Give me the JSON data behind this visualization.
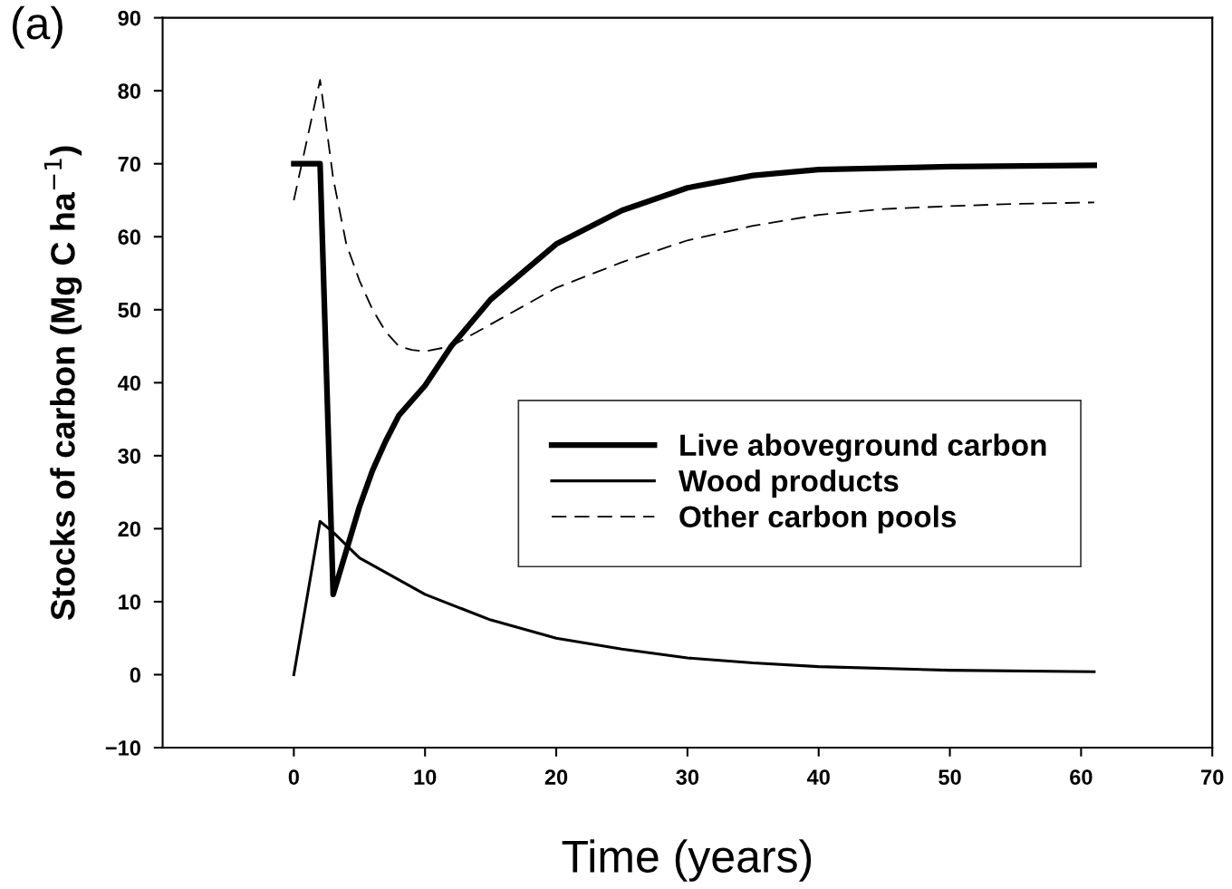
{
  "chart_data": {
    "type": "line",
    "xlabel": "Time (years)",
    "ylabel": "Stocks of carbon (Mg C ha$^{−1}$)",
    "annotations": [
      "(a)"
    ],
    "xlim": [
      -10,
      70
    ],
    "xticks": [
      0,
      10,
      20,
      30,
      40,
      50,
      60,
      70
    ],
    "ylim": [
      -10,
      90
    ],
    "yticks": [
      {
        "value": -10,
        "label": "−10"
      },
      0,
      10,
      20,
      30,
      40,
      50,
      60,
      70,
      80,
      90
    ],
    "grid": false,
    "legend": "right",
    "marker": "none",
    "series": [
      {
        "name": "Live aboveground carbon",
        "color": "#000000",
        "line_style": "solid",
        "x": [
          0,
          2,
          3,
          4,
          5,
          6,
          7,
          8,
          10,
          12,
          15,
          20,
          25,
          30,
          35,
          40,
          50,
          61
        ],
        "values": [
          70,
          70,
          11,
          17,
          23,
          28,
          32,
          35.5,
          39.6,
          45,
          51.4,
          59,
          63.6,
          66.7,
          68.4,
          69.2,
          69.6,
          69.8
        ]
      },
      {
        "name": "Wood products",
        "color": "#000000",
        "line_style": "solid",
        "x": [
          0,
          2,
          3,
          5,
          10,
          15,
          20,
          25,
          30,
          35,
          40,
          50,
          61
        ],
        "values": [
          0,
          21,
          19.5,
          16,
          11,
          7.5,
          5,
          3.5,
          2.3,
          1.6,
          1.1,
          0.6,
          0.4
        ]
      },
      {
        "name": "Other carbon pools",
        "color": "#000000",
        "line_style": "dashed",
        "x": [
          0,
          2,
          3,
          4,
          5,
          6,
          7,
          8,
          9,
          10,
          12,
          15,
          20,
          25,
          30,
          35,
          40,
          45,
          50,
          55,
          61
        ],
        "values": [
          65,
          81.5,
          68,
          59,
          54,
          50,
          47,
          45,
          44.5,
          44.3,
          45,
          48,
          53,
          56.5,
          59.5,
          61.5,
          63,
          63.8,
          64.2,
          64.5,
          64.7
        ]
      }
    ]
  }
}
